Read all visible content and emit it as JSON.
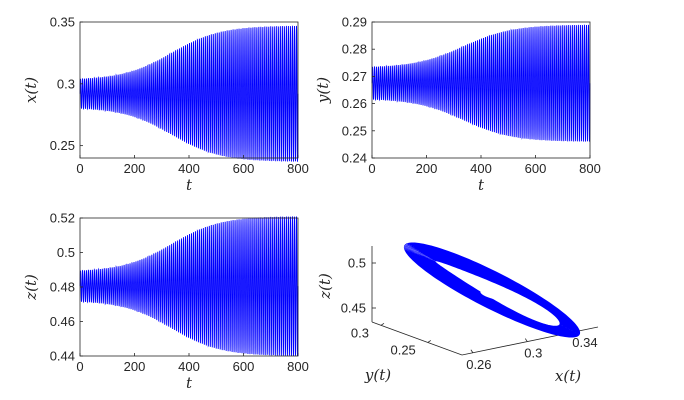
{
  "colors": {
    "series": "#0000ff",
    "axis": "#262626",
    "background": "#ffffff"
  },
  "chart_data": [
    {
      "type": "line",
      "xlabel": "t",
      "ylabel": "x(t)",
      "xlim": [
        0,
        800
      ],
      "ylim": [
        0.24,
        0.35
      ],
      "xticks": [
        0,
        200,
        400,
        600,
        800
      ],
      "yticks": [
        0.25,
        0.3,
        0.35
      ],
      "ytick_labels": [
        "0.25",
        "0.3",
        "0.35"
      ],
      "series": [
        {
          "t_range": [
            0,
            800
          ],
          "center": 0.292,
          "initial_amplitude": 0.012,
          "final_amplitude": 0.055,
          "peak_count": 110
        }
      ]
    },
    {
      "type": "line",
      "xlabel": "t",
      "ylabel": "y(t)",
      "xlim": [
        0,
        800
      ],
      "ylim": [
        0.24,
        0.29
      ],
      "xticks": [
        0,
        200,
        400,
        600,
        800
      ],
      "yticks": [
        0.24,
        0.25,
        0.26,
        0.27,
        0.28,
        0.29
      ],
      "ytick_labels": [
        "0.24",
        "0.25",
        "0.26",
        "0.27",
        "0.28",
        "0.29"
      ],
      "series": [
        {
          "t_range": [
            0,
            800
          ],
          "center": 0.2675,
          "initial_amplitude": 0.006,
          "final_amplitude": 0.0215,
          "peak_count": 110
        }
      ]
    },
    {
      "type": "line",
      "xlabel": "t",
      "ylabel": "z(t)",
      "xlim": [
        0,
        800
      ],
      "ylim": [
        0.44,
        0.52
      ],
      "xticks": [
        0,
        200,
        400,
        600,
        800
      ],
      "yticks": [
        0.44,
        0.46,
        0.48,
        0.5,
        0.52
      ],
      "ytick_labels": [
        "0.44",
        "0.46",
        "0.48",
        "0.5",
        "0.52"
      ],
      "series": [
        {
          "t_range": [
            0,
            800
          ],
          "center": 0.4805,
          "initial_amplitude": 0.009,
          "final_amplitude": 0.0405,
          "peak_count": 110
        }
      ]
    },
    {
      "type": "line3d",
      "xlabel": "x(t)",
      "ylabel": "y(t)",
      "zlabel": "z(t)",
      "xticks": [
        0.26,
        0.3,
        0.34
      ],
      "xtick_labels": [
        "0.26",
        "0.3",
        "0.34"
      ],
      "yticks": [
        0.25,
        0.3
      ],
      "ytick_labels": [
        "0.25",
        "0.3"
      ],
      "zticks": [
        0.45,
        0.5
      ],
      "ztick_labels": [
        "0.45",
        "0.5"
      ],
      "series": [
        {
          "shape": "limit cycle (elongated loop with inner hole)"
        }
      ]
    }
  ]
}
